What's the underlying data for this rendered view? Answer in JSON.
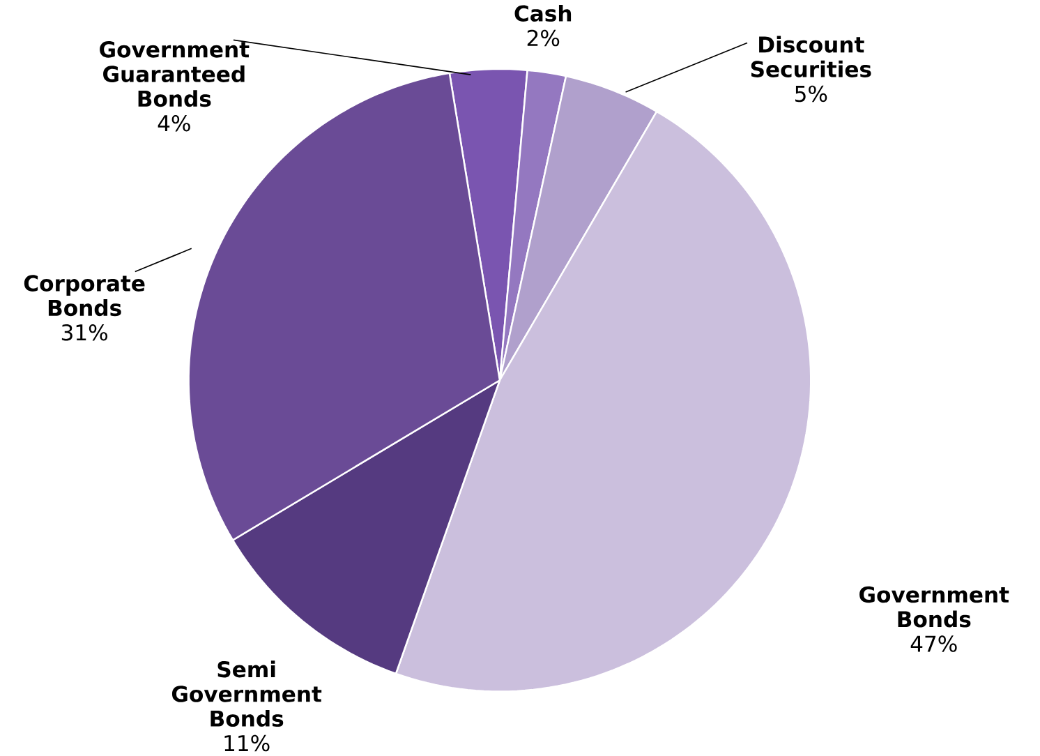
{
  "chart_data": {
    "type": "pie",
    "categories": [
      "Government Guaranteed Bonds",
      "Cash",
      "Discount Securities",
      "Government Bonds",
      "Semi Government Bonds",
      "Corporate Bonds"
    ],
    "values": [
      4,
      2,
      5,
      47,
      11,
      31
    ],
    "value_labels": [
      "4%",
      "2%",
      "5%",
      "47%",
      "11%",
      "31%"
    ],
    "colors": [
      "#7a55b0",
      "#9478c0",
      "#b0a0cc",
      "#cbbfdd",
      "#553a80",
      "#6a4b96"
    ]
  }
}
